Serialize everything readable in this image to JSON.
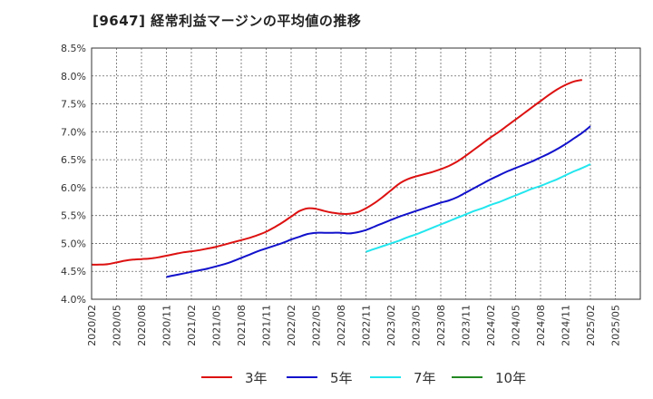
{
  "chart_data": {
    "type": "line",
    "title": "[9647]  経常利益マージンの平均値の推移",
    "y_ticks": [
      "8.5%",
      "8.0%",
      "7.5%",
      "7.0%",
      "6.5%",
      "6.0%",
      "5.5%",
      "5.0%",
      "4.5%",
      "4.0%"
    ],
    "x_ticks": [
      "2020/02",
      "2020/05",
      "2020/08",
      "2020/11",
      "2021/02",
      "2021/05",
      "2021/08",
      "2021/11",
      "2022/02",
      "2022/05",
      "2022/08",
      "2022/11",
      "2023/02",
      "2023/05",
      "2023/08",
      "2023/11",
      "2024/02",
      "2024/05",
      "2024/08",
      "2024/11",
      "2025/02",
      "2025/05"
    ],
    "ylim": [
      4.0,
      8.5
    ],
    "grid": true,
    "legend_position": "bottom",
    "series": [
      {
        "name": "3年",
        "color": "#dd1111",
        "start": "2020/02",
        "values": [
          4.62,
          4.62,
          4.63,
          4.66,
          4.69,
          4.71,
          4.72,
          4.73,
          4.75,
          4.78,
          4.81,
          4.84,
          4.86,
          4.88,
          4.91,
          4.94,
          4.98,
          5.02,
          5.06,
          5.1,
          5.15,
          5.21,
          5.29,
          5.38,
          5.48,
          5.58,
          5.63,
          5.62,
          5.58,
          5.55,
          5.53,
          5.53,
          5.56,
          5.63,
          5.72,
          5.83,
          5.95,
          6.07,
          6.15,
          6.2,
          6.24,
          6.28,
          6.33,
          6.39,
          6.47,
          6.57,
          6.68,
          6.79,
          6.9,
          7.0,
          7.11,
          7.22,
          7.33,
          7.44,
          7.55,
          7.66,
          7.76,
          7.84,
          7.9,
          7.93
        ]
      },
      {
        "name": "5年",
        "color": "#1111cc",
        "start": "2020/11",
        "values": [
          4.4,
          4.43,
          4.46,
          4.49,
          4.52,
          4.55,
          4.59,
          4.63,
          4.68,
          4.74,
          4.8,
          4.86,
          4.91,
          4.96,
          5.01,
          5.07,
          5.12,
          5.17,
          5.19,
          5.19,
          5.19,
          5.19,
          5.18,
          5.2,
          5.24,
          5.3,
          5.36,
          5.42,
          5.48,
          5.53,
          5.58,
          5.63,
          5.68,
          5.73,
          5.77,
          5.83,
          5.91,
          5.99,
          6.07,
          6.15,
          6.22,
          6.29,
          6.35,
          6.41,
          6.47,
          6.54,
          6.61,
          6.69,
          6.78,
          6.88,
          6.98,
          7.1
        ]
      },
      {
        "name": "7年",
        "color": "#22e6ee",
        "start": "2022/11",
        "values": [
          4.85,
          4.9,
          4.95,
          5.0,
          5.05,
          5.11,
          5.16,
          5.22,
          5.28,
          5.34,
          5.4,
          5.46,
          5.52,
          5.58,
          5.63,
          5.69,
          5.74,
          5.8,
          5.86,
          5.92,
          5.98,
          6.03,
          6.09,
          6.15,
          6.22,
          6.29,
          6.35,
          6.42
        ]
      },
      {
        "name": "10年",
        "color": "#228822",
        "start": "2025/05",
        "values": []
      }
    ]
  }
}
